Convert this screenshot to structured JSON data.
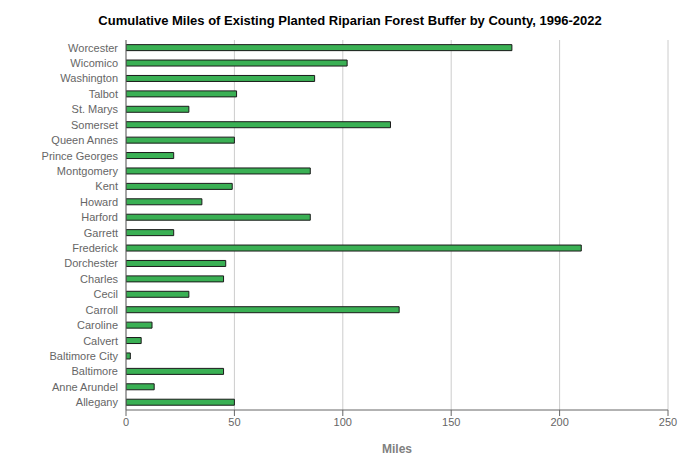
{
  "chart_data": {
    "type": "bar",
    "title": "Cumulative Miles of Existing Planted Riparian Forest Buffer by County, 1996-2022",
    "xlabel": "Miles",
    "orientation": "horizontal",
    "categories": [
      "Worcester",
      "Wicomico",
      "Washington",
      "Talbot",
      "St. Marys",
      "Somerset",
      "Queen Annes",
      "Prince Georges",
      "Montgomery",
      "Kent",
      "Howard",
      "Harford",
      "Garrett",
      "Frederick",
      "Dorchester",
      "Charles",
      "Cecil",
      "Carroll",
      "Caroline",
      "Calvert",
      "Baltimore City",
      "Baltimore",
      "Anne Arundel",
      "Allegany"
    ],
    "values": [
      178,
      102,
      87,
      51,
      29,
      122,
      50,
      22,
      85,
      49,
      35,
      85,
      22,
      210,
      46,
      45,
      29,
      126,
      12,
      7,
      2,
      45,
      13,
      50
    ],
    "color": "#3ab054",
    "xlim": [
      0,
      250
    ],
    "xticks": [
      0,
      50,
      100,
      150,
      200,
      250
    ],
    "grid": true
  }
}
